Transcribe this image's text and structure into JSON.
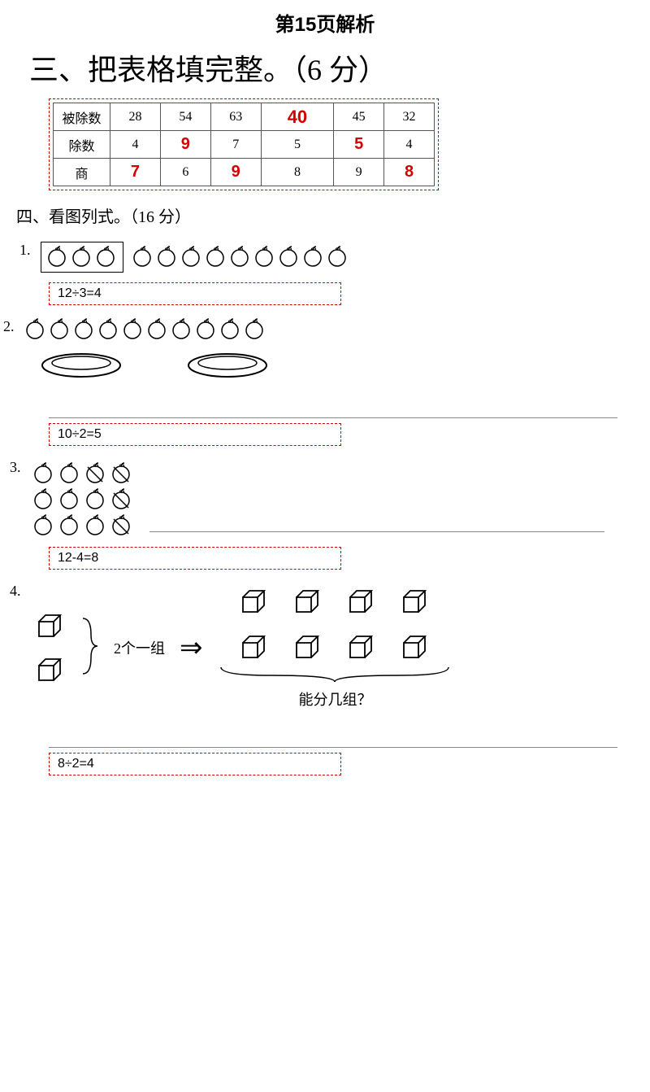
{
  "page_title": "第15页解析",
  "section3": {
    "heading": "三、把表格填完整。（6 分）",
    "rows": [
      {
        "label": "被除数",
        "cells": [
          {
            "v": "28",
            "red": false
          },
          {
            "v": "54",
            "red": false
          },
          {
            "v": "63",
            "red": false
          },
          {
            "v": "40",
            "red": true,
            "big": true
          },
          {
            "v": "45",
            "red": false
          },
          {
            "v": "32",
            "red": false
          }
        ]
      },
      {
        "label": "除数",
        "cells": [
          {
            "v": "4",
            "red": false
          },
          {
            "v": "9",
            "red": true
          },
          {
            "v": "7",
            "red": false
          },
          {
            "v": "5",
            "red": false
          },
          {
            "v": "5",
            "red": true
          },
          {
            "v": "4",
            "red": false
          }
        ]
      },
      {
        "label": "商",
        "cells": [
          {
            "v": "7",
            "red": true
          },
          {
            "v": "6",
            "red": false
          },
          {
            "v": "9",
            "red": true
          },
          {
            "v": "8",
            "red": false
          },
          {
            "v": "9",
            "red": false
          },
          {
            "v": "8",
            "red": true
          }
        ]
      }
    ]
  },
  "section4": {
    "heading": "四、看图列式。（16 分）",
    "q1": {
      "num": "1.",
      "boxed_apples": 3,
      "loose_apples": 9,
      "answer": "12÷3=4"
    },
    "q2": {
      "num": "2.",
      "apples": 10,
      "plates": 2,
      "answer": "10÷2=5"
    },
    "q3": {
      "num": "3.",
      "rows": [
        [
          false,
          false,
          true,
          true
        ],
        [
          false,
          false,
          false,
          true
        ],
        [
          false,
          false,
          false,
          true
        ]
      ],
      "answer": "12-4=8"
    },
    "q4": {
      "num": "4.",
      "group_label": "2个一组",
      "arrow": "⇒",
      "right_rows": 2,
      "right_cols": 4,
      "caption": "能分几组？",
      "answer": "8÷2=4"
    }
  },
  "colors": {
    "red": "#d40000",
    "dash": "#cc0000",
    "text": "#000000",
    "bg": "#ffffff",
    "tableBorder": "#555555"
  }
}
